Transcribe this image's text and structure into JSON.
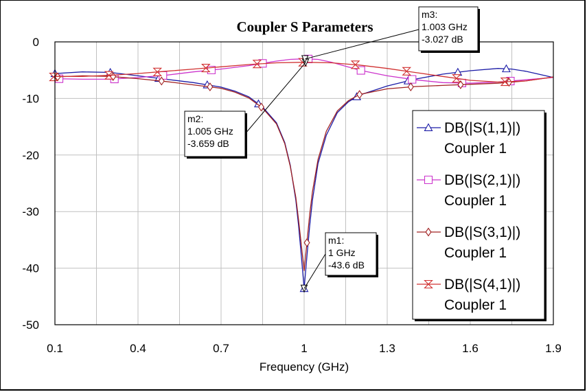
{
  "chart_data": {
    "type": "line",
    "title": "Coupler S Parameters",
    "xlabel": "Frequency (GHz)",
    "ylabel": "",
    "xlim": [
      0.1,
      1.9
    ],
    "ylim": [
      -50,
      0
    ],
    "xticks": [
      0.1,
      0.4,
      0.7,
      1.0,
      1.3,
      1.6,
      1.9
    ],
    "xtick_labels": [
      "0.1",
      "0.4",
      "0.7",
      "1",
      "1.3",
      "1.6",
      "1.9"
    ],
    "yticks": [
      0,
      -10,
      -20,
      -30,
      -40,
      -50
    ],
    "ytick_labels": [
      "0",
      "-10",
      "-20",
      "-30",
      "-40",
      "-50"
    ],
    "grid": true,
    "legend_position": "right",
    "series": [
      {
        "name": "DB(|S(1,1)|)",
        "source": "Coupler 1",
        "color": "#1a1aa6",
        "marker": "triangle-up",
        "x": [
          0.1,
          0.2,
          0.3,
          0.4,
          0.5,
          0.6,
          0.7,
          0.75,
          0.8,
          0.85,
          0.9,
          0.93,
          0.95,
          0.97,
          0.98,
          0.99,
          1.0,
          1.01,
          1.02,
          1.03,
          1.05,
          1.08,
          1.12,
          1.16,
          1.2,
          1.3,
          1.4,
          1.5,
          1.6,
          1.7,
          1.75,
          1.8,
          1.9
        ],
        "y": [
          -5.6,
          -5.3,
          -5.4,
          -6.0,
          -6.6,
          -7.2,
          -8.0,
          -8.7,
          -9.7,
          -11.5,
          -14.3,
          -17.8,
          -21.8,
          -28.0,
          -32.5,
          -38.0,
          -43.6,
          -38.0,
          -32.5,
          -28.0,
          -21.5,
          -16.5,
          -12.5,
          -10.6,
          -9.4,
          -7.8,
          -6.6,
          -5.7,
          -5.1,
          -4.7,
          -4.8,
          -5.2,
          -6.3
        ]
      },
      {
        "name": "DB(|S(2,1)|)",
        "source": "Coupler 1",
        "color": "#cc33cc",
        "marker": "square",
        "x": [
          0.1,
          0.2,
          0.3,
          0.4,
          0.5,
          0.6,
          0.7,
          0.8,
          0.85,
          0.9,
          0.95,
          1.0,
          1.05,
          1.1,
          1.2,
          1.3,
          1.4,
          1.5,
          1.6,
          1.7,
          1.8,
          1.9
        ],
        "y": [
          -6.5,
          -6.6,
          -6.6,
          -6.3,
          -5.9,
          -5.3,
          -4.8,
          -4.2,
          -3.8,
          -3.4,
          -3.1,
          -3.0,
          -3.1,
          -3.6,
          -5.0,
          -6.0,
          -6.7,
          -7.2,
          -7.3,
          -7.1,
          -6.7,
          -6.3
        ]
      },
      {
        "name": "DB(|S(3,1)|)",
        "source": "Coupler 1",
        "color": "#a02020",
        "marker": "diamond",
        "x": [
          0.1,
          0.2,
          0.3,
          0.4,
          0.5,
          0.6,
          0.7,
          0.75,
          0.8,
          0.85,
          0.9,
          0.93,
          0.95,
          0.97,
          0.98,
          0.99,
          1.0,
          1.01,
          1.02,
          1.03,
          1.05,
          1.08,
          1.12,
          1.16,
          1.2,
          1.3,
          1.4,
          1.5,
          1.6,
          1.7,
          1.8,
          1.9
        ],
        "y": [
          -6.2,
          -6.0,
          -6.1,
          -6.5,
          -7.0,
          -7.6,
          -8.2,
          -8.9,
          -9.9,
          -11.7,
          -14.5,
          -18.0,
          -22.0,
          -27.5,
          -31.5,
          -36.0,
          -40.5,
          -35.5,
          -30.5,
          -26.5,
          -20.8,
          -15.8,
          -12.2,
          -10.4,
          -9.3,
          -8.3,
          -7.9,
          -7.7,
          -7.5,
          -7.3,
          -6.9,
          -6.2
        ]
      },
      {
        "name": "DB(|S(4,1)|)",
        "source": "Coupler 1",
        "color": "#d03030",
        "marker": "hourglass",
        "x": [
          0.1,
          0.2,
          0.3,
          0.4,
          0.5,
          0.6,
          0.7,
          0.8,
          0.9,
          1.0,
          1.1,
          1.2,
          1.3,
          1.4,
          1.5,
          1.6,
          1.7,
          1.8,
          1.9
        ],
        "y": [
          -6.1,
          -6.1,
          -5.9,
          -5.6,
          -5.2,
          -4.8,
          -4.4,
          -4.0,
          -3.7,
          -3.6,
          -3.7,
          -4.1,
          -4.7,
          -5.4,
          -6.1,
          -6.8,
          -7.1,
          -6.9,
          -6.2
        ]
      }
    ],
    "markers": [
      {
        "name": "m1:",
        "freq": "1 GHz",
        "value": "-43.6 dB",
        "x": 1.0,
        "y": -43.6
      },
      {
        "name": "m2:",
        "freq": "1.005 GHz",
        "value": "-3.659 dB",
        "x": 1.005,
        "y": -3.659
      },
      {
        "name": "m3:",
        "freq": "1.003 GHz",
        "value": "-3.027 dB",
        "x": 1.003,
        "y": -3.027
      }
    ]
  }
}
